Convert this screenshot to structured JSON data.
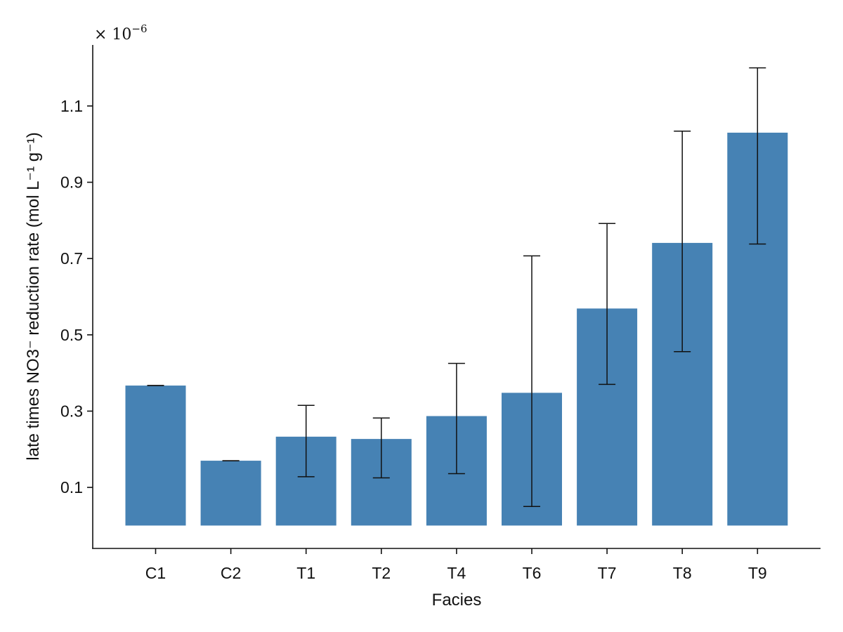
{
  "chart_data": {
    "type": "bar",
    "title": "",
    "xlabel": "Facies",
    "ylabel": "late times NO3⁻ reduction rate (mol L⁻¹ g⁻¹)",
    "y_scale_label": "× 10",
    "y_scale_exponent": "−6",
    "categories": [
      "C1",
      "C2",
      "T1",
      "T2",
      "T4",
      "T6",
      "T7",
      "T8",
      "T9"
    ],
    "values": [
      0.367,
      0.17,
      0.233,
      0.227,
      0.287,
      0.348,
      0.569,
      0.741,
      1.03
    ],
    "error_low": [
      0.367,
      0.17,
      0.128,
      0.125,
      0.136,
      0.05,
      0.37,
      0.456,
      0.738
    ],
    "error_high": [
      0.367,
      0.17,
      0.315,
      0.282,
      0.425,
      0.707,
      0.792,
      1.034,
      1.2
    ],
    "yticks": [
      0.1,
      0.3,
      0.5,
      0.7,
      0.9,
      1.1
    ],
    "ylim": [
      -0.06,
      1.26
    ],
    "grid": false,
    "colors": {
      "bar": "#4682b4",
      "axis": "#111111"
    }
  }
}
